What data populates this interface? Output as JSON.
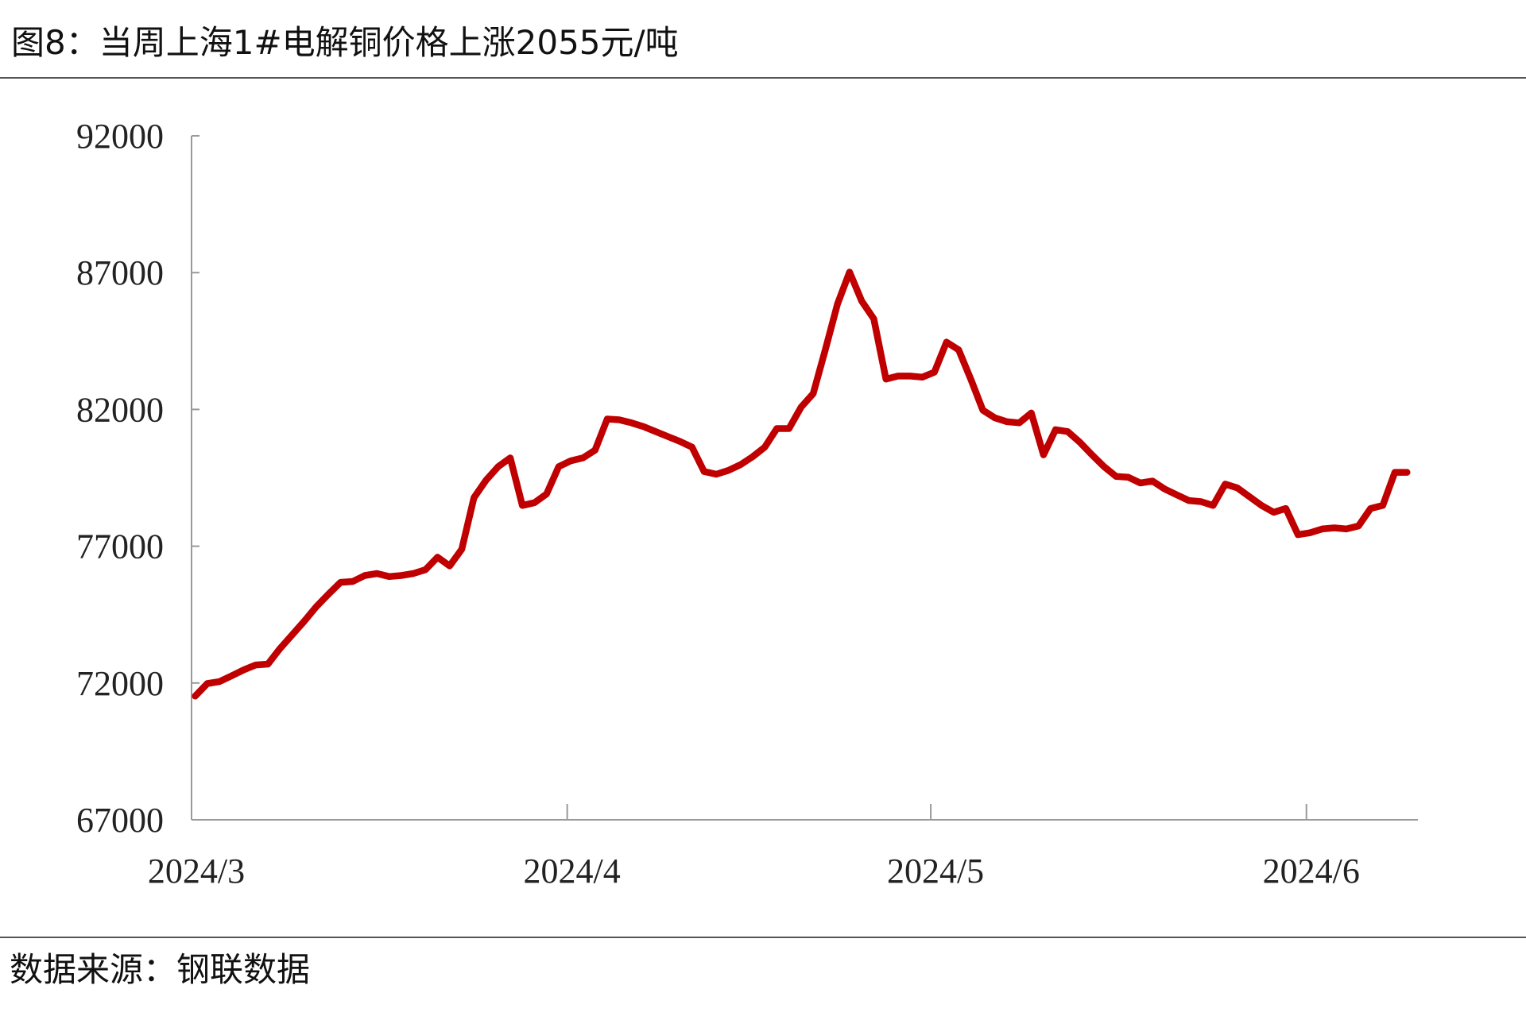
{
  "chart_data": {
    "type": "line",
    "title": "图8：当周上海1#电解铜价格上涨2055元/吨",
    "source": "数据来源：钢联数据",
    "categories": [
      "2024/3",
      null,
      null,
      null,
      null,
      null,
      null,
      null,
      null,
      null,
      null,
      null,
      null,
      null,
      null,
      null,
      null,
      null,
      null,
      null,
      null,
      null,
      null,
      null,
      null,
      null,
      null,
      null,
      null,
      null,
      null,
      "2024/4",
      null,
      null,
      null,
      null,
      null,
      null,
      null,
      null,
      null,
      null,
      null,
      null,
      null,
      null,
      null,
      null,
      null,
      null,
      null,
      null,
      null,
      null,
      null,
      null,
      null,
      null,
      null,
      null,
      null,
      "2024/5",
      null,
      null,
      null,
      null,
      null,
      null,
      null,
      null,
      null,
      null,
      null,
      null,
      null,
      null,
      null,
      null,
      null,
      null,
      null,
      null,
      null,
      null,
      null,
      null,
      null,
      null,
      null,
      null,
      null,
      null,
      "2024/6",
      null,
      null,
      null,
      null,
      null,
      null,
      null,
      null
    ],
    "series": [
      {
        "name": "上海1#电解铜",
        "color": "#c00000",
        "values": [
          71520,
          71980,
          72050,
          72260,
          72480,
          72660,
          72690,
          73260,
          73760,
          74260,
          74790,
          75250,
          75680,
          75710,
          75930,
          76000,
          75890,
          75930,
          76000,
          76140,
          76600,
          76280,
          76890,
          78770,
          79410,
          79910,
          80230,
          78490,
          78590,
          78910,
          79910,
          80120,
          80230,
          80510,
          81650,
          81620,
          81510,
          81370,
          81190,
          81010,
          80830,
          80620,
          79730,
          79630,
          79770,
          79980,
          80270,
          80620,
          81300,
          81300,
          82080,
          82580,
          84180,
          85850,
          87020,
          85960,
          85310,
          83110,
          83220,
          83220,
          83180,
          83360,
          84460,
          84180,
          83110,
          81970,
          81690,
          81550,
          81510,
          81870,
          80340,
          81260,
          81190,
          80800,
          80340,
          79910,
          79550,
          79520,
          79310,
          79380,
          79090,
          78880,
          78670,
          78630,
          78490,
          79270,
          79130,
          78810,
          78490,
          78240,
          78380,
          77420,
          77490,
          77630,
          77670,
          77630,
          77740,
          78380,
          78490,
          79700,
          79700
        ]
      }
    ],
    "ylim": [
      67000,
      92000
    ],
    "yticks": [
      67000,
      72000,
      77000,
      82000,
      87000,
      92000
    ]
  }
}
